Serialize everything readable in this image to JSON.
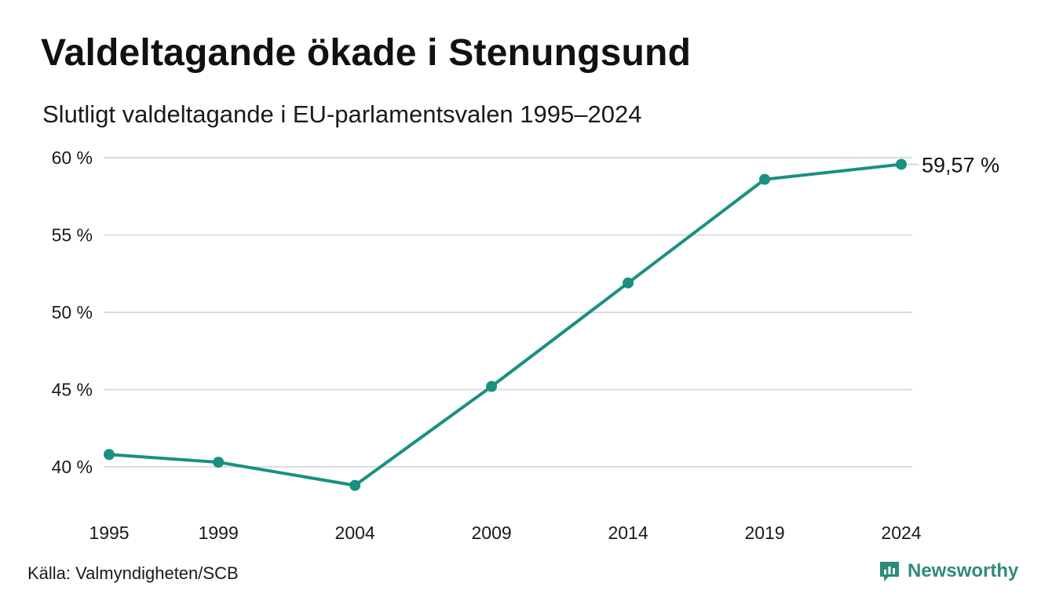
{
  "header": {
    "title": "Valdeltagande ökade i Stenungsund",
    "subtitle": "Slutligt valdeltagande i EU-parlamentsvalen 1995–2024"
  },
  "footer": {
    "source": "Källa: Valmyndigheten/SCB",
    "brand": "Newsworthy",
    "brand_color": "#2e8b7a"
  },
  "chart_data": {
    "type": "line",
    "title": "Valdeltagande ökade i Stenungsund",
    "subtitle": "Slutligt valdeltagande i EU-parlamentsvalen 1995–2024",
    "xlabel": "",
    "ylabel": "",
    "x": [
      "1995",
      "1999",
      "2004",
      "2009",
      "2014",
      "2019",
      "2024"
    ],
    "x_values": [
      1995,
      1999,
      2004,
      2009,
      2014,
      2019,
      2024
    ],
    "series": [
      {
        "values": [
          40.8,
          40.3,
          38.8,
          45.2,
          51.9,
          58.6,
          59.57
        ],
        "color": "#1a9080"
      }
    ],
    "ylim": [
      38,
      60
    ],
    "yticks": [
      40,
      45,
      50,
      55,
      60
    ],
    "ytick_labels": [
      "40 %",
      "45 %",
      "50 %",
      "55 %",
      "60 %"
    ],
    "end_label": "59,57 %",
    "grid": true,
    "grid_color": "#dcdde3",
    "legend": "none"
  }
}
